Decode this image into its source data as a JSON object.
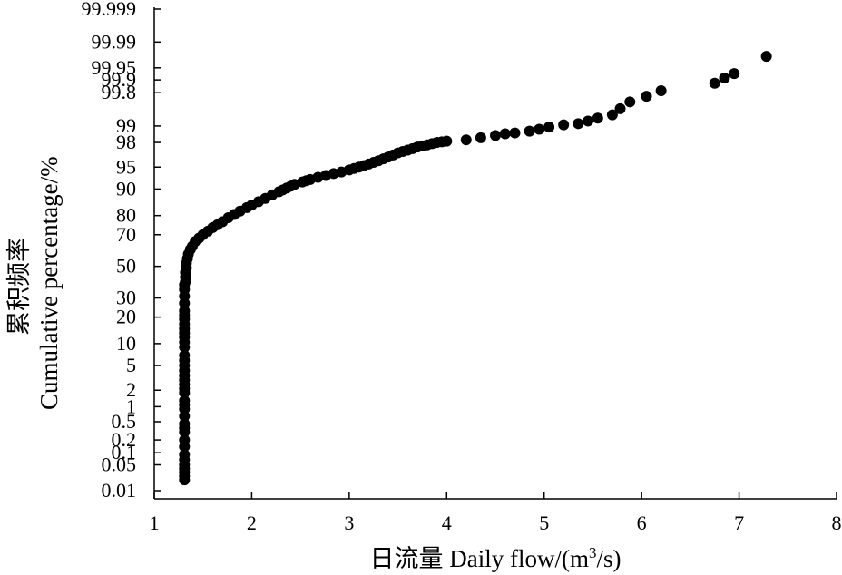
{
  "chart_data": {
    "type": "scatter",
    "title": "",
    "xlabel": "日流量 Daily flow/(m³/s)",
    "xlabel_parts": {
      "main": "日流量 Daily flow/(m",
      "sup": "3",
      "tail": "/s)"
    },
    "ylabel_line1": "累积频率",
    "ylabel_line2": "Cumulative percentage/%",
    "y_scale": "normal-probability",
    "xlim": [
      1,
      8
    ],
    "x_ticks": [
      "1",
      "2",
      "3",
      "4",
      "5",
      "6",
      "7",
      "8"
    ],
    "y_ticks": [
      "0.01",
      "0.05",
      "0.1",
      "0.2",
      "0.5",
      "1",
      "2",
      "5",
      "10",
      "20",
      "30",
      "50",
      "70",
      "80",
      "90",
      "95",
      "98",
      "99",
      "99.8",
      "99.9",
      "99.95",
      "99.99",
      "99.999"
    ],
    "grid": false,
    "legend": "none",
    "marker_color": "#000000",
    "series": [
      {
        "points": [
          [
            1.31,
            0.02
          ],
          [
            1.31,
            0.05
          ],
          [
            1.31,
            0.09
          ],
          [
            1.31,
            0.14
          ],
          [
            1.31,
            0.2
          ],
          [
            1.31,
            0.3
          ],
          [
            1.31,
            0.45
          ],
          [
            1.31,
            0.65
          ],
          [
            1.31,
            0.9
          ],
          [
            1.31,
            1.3
          ],
          [
            1.31,
            1.8
          ],
          [
            1.31,
            2.5
          ],
          [
            1.31,
            3.5
          ],
          [
            1.31,
            5
          ],
          [
            1.31,
            7
          ],
          [
            1.31,
            9
          ],
          [
            1.31,
            12
          ],
          [
            1.31,
            15
          ],
          [
            1.31,
            19
          ],
          [
            1.31,
            23
          ],
          [
            1.31,
            27
          ],
          [
            1.31,
            31
          ],
          [
            1.31,
            35
          ],
          [
            1.31,
            38
          ],
          [
            1.32,
            40
          ],
          [
            1.32,
            43
          ],
          [
            1.32,
            46
          ],
          [
            1.33,
            49
          ],
          [
            1.33,
            52
          ],
          [
            1.34,
            55
          ],
          [
            1.35,
            58
          ],
          [
            1.37,
            61
          ],
          [
            1.39,
            63
          ],
          [
            1.42,
            66
          ],
          [
            1.46,
            68
          ],
          [
            1.5,
            70
          ],
          [
            1.55,
            72
          ],
          [
            1.6,
            74
          ],
          [
            1.65,
            75.5
          ],
          [
            1.7,
            77
          ],
          [
            1.76,
            79
          ],
          [
            1.82,
            80.5
          ],
          [
            1.88,
            82
          ],
          [
            1.95,
            83.5
          ],
          [
            2.0,
            84.5
          ],
          [
            2.07,
            85.8
          ],
          [
            2.14,
            87
          ],
          [
            2.21,
            88.2
          ],
          [
            2.28,
            89.2
          ],
          [
            2.36,
            90.3
          ],
          [
            2.44,
            91.3
          ],
          [
            2.52,
            91.9
          ],
          [
            2.6,
            92.5
          ],
          [
            2.68,
            93
          ],
          [
            2.76,
            93.4
          ],
          [
            2.84,
            93.8
          ],
          [
            2.92,
            94.1
          ],
          [
            3.0,
            94.5
          ],
          [
            3.1,
            95
          ],
          [
            3.2,
            95.5
          ],
          [
            3.3,
            96
          ],
          [
            3.4,
            96.5
          ],
          [
            3.5,
            97
          ],
          [
            3.6,
            97.3
          ],
          [
            3.7,
            97.6
          ],
          [
            3.8,
            97.8
          ],
          [
            3.9,
            98
          ],
          [
            4.0,
            98.1
          ],
          [
            4.2,
            98.2
          ],
          [
            4.35,
            98.35
          ],
          [
            4.5,
            98.5
          ],
          [
            4.6,
            98.6
          ],
          [
            4.7,
            98.65
          ],
          [
            4.85,
            98.75
          ],
          [
            4.95,
            98.85
          ],
          [
            5.05,
            98.95
          ],
          [
            5.2,
            99.05
          ],
          [
            5.35,
            99.1
          ],
          [
            5.45,
            99.2
          ],
          [
            5.55,
            99.3
          ],
          [
            5.7,
            99.4
          ],
          [
            5.78,
            99.55
          ],
          [
            5.88,
            99.68
          ],
          [
            6.05,
            99.76
          ],
          [
            6.2,
            99.82
          ],
          [
            6.75,
            99.88
          ],
          [
            6.85,
            99.91
          ],
          [
            6.95,
            99.93
          ],
          [
            7.28,
            99.975
          ]
        ]
      }
    ]
  }
}
